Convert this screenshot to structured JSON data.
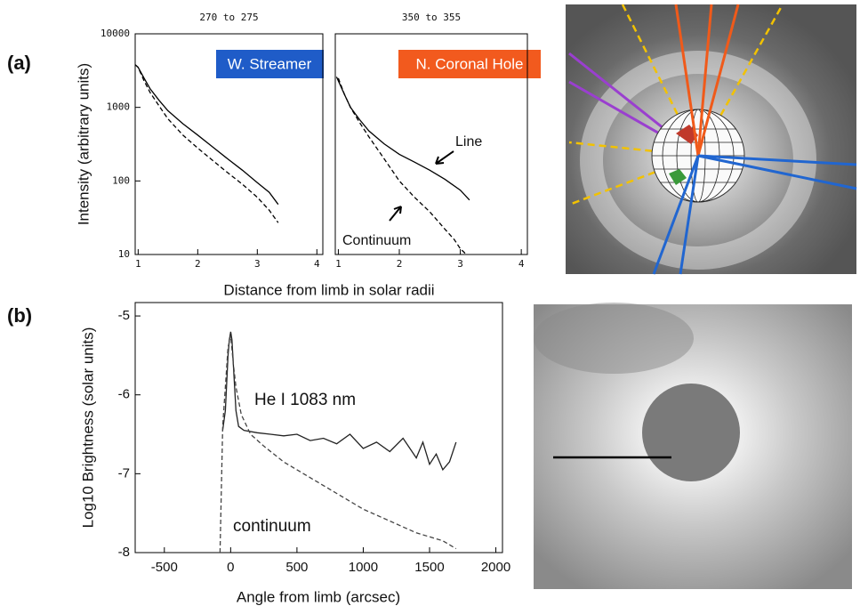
{
  "panels": [
    "(a)",
    "(b)"
  ],
  "chart_data": [
    {
      "type": "line",
      "title": "270 to 275",
      "ylabel": "Intensity (arbitrary units)",
      "xlabel": "Distance from limb in solar radii",
      "annotations": [
        "W. Streamer"
      ],
      "ylog": true,
      "xlim": [
        0.95,
        4.1
      ],
      "xticks": [
        1,
        2,
        3,
        4
      ],
      "ylim": [
        10,
        10000
      ],
      "yticks": [
        10,
        100,
        1000,
        10000
      ],
      "series": [
        {
          "color": "#000000",
          "dashed": false,
          "x": [
            0.95,
            1,
            1.1,
            1.2,
            1.35,
            1.5,
            1.75,
            2,
            2.25,
            2.5,
            2.75,
            3,
            3.2,
            3.35
          ],
          "values": [
            3800,
            3500,
            2500,
            1800,
            1250,
            900,
            600,
            420,
            290,
            200,
            140,
            95,
            70,
            48
          ]
        },
        {
          "color": "#000000",
          "dashed": true,
          "x": [
            0.95,
            1,
            1.1,
            1.2,
            1.35,
            1.5,
            1.75,
            2,
            2.25,
            2.5,
            2.75,
            3,
            3.2,
            3.35
          ],
          "values": [
            3800,
            3500,
            2300,
            1600,
            1050,
            700,
            420,
            280,
            190,
            130,
            90,
            60,
            40,
            27
          ]
        }
      ]
    },
    {
      "type": "line",
      "title": "350 to 355",
      "annotations": [
        "N. Coronal Hole",
        "Line",
        "Continuum"
      ],
      "ylog": true,
      "xlim": [
        0.95,
        4.1
      ],
      "xticks": [
        1,
        2,
        3,
        4
      ],
      "ylim": [
        10,
        10000
      ],
      "series": [
        {
          "color": "#000000",
          "dashed": false,
          "x": [
            0.97,
            1,
            1.1,
            1.2,
            1.35,
            1.5,
            1.75,
            2,
            2.25,
            2.5,
            2.75,
            3,
            3.15
          ],
          "values": [
            2600,
            2300,
            1500,
            1000,
            680,
            480,
            320,
            230,
            180,
            140,
            105,
            75,
            55
          ]
        },
        {
          "color": "#000000",
          "dashed": true,
          "x": [
            1,
            1.1,
            1.2,
            1.35,
            1.5,
            1.75,
            2,
            2.25,
            2.5,
            2.75,
            2.9,
            3,
            3.1
          ],
          "values": [
            2500,
            1500,
            1000,
            620,
            400,
            200,
            100,
            60,
            38,
            22,
            16,
            12,
            10
          ]
        }
      ]
    },
    {
      "type": "line",
      "ylabel": "Log10 Brightness (solar units)",
      "xlabel": "Angle from limb (arcsec)",
      "annotations": [
        "He I 1083 nm",
        "continuum"
      ],
      "ylog": false,
      "xlim": [
        -720,
        2050
      ],
      "xticks": [
        -500,
        0,
        500,
        1000,
        1500,
        2000
      ],
      "ylim": [
        -8,
        -4.83
      ],
      "yticks": [
        -5,
        -6,
        -7,
        -8
      ],
      "series": [
        {
          "color": "#222222",
          "dashed": false,
          "x": [
            -60,
            -40,
            -20,
            -10,
            0,
            10,
            20,
            40,
            60,
            100,
            200,
            300,
            400,
            500,
            600,
            700,
            800,
            900,
            1000,
            1100,
            1200,
            1300,
            1400,
            1450,
            1500,
            1550,
            1600,
            1650,
            1700
          ],
          "values": [
            -6.45,
            -6.2,
            -5.5,
            -5.3,
            -5.2,
            -5.3,
            -5.6,
            -6.2,
            -6.4,
            -6.45,
            -6.48,
            -6.5,
            -6.52,
            -6.5,
            -6.58,
            -6.55,
            -6.62,
            -6.5,
            -6.68,
            -6.6,
            -6.72,
            -6.55,
            -6.8,
            -6.6,
            -6.88,
            -6.75,
            -6.95,
            -6.85,
            -6.6
          ]
        },
        {
          "color": "#444444",
          "dashed": true,
          "x": [
            -80,
            -60,
            -40,
            -20,
            0,
            20,
            40,
            80,
            150,
            250,
            400,
            600,
            800,
            1000,
            1200,
            1400,
            1600,
            1700
          ],
          "values": [
            -8,
            -6.4,
            -5.9,
            -5.4,
            -5.25,
            -5.6,
            -5.9,
            -6.25,
            -6.5,
            -6.65,
            -6.85,
            -7.05,
            -7.25,
            -7.45,
            -7.6,
            -7.75,
            -7.85,
            -7.95
          ]
        }
      ]
    }
  ]
}
